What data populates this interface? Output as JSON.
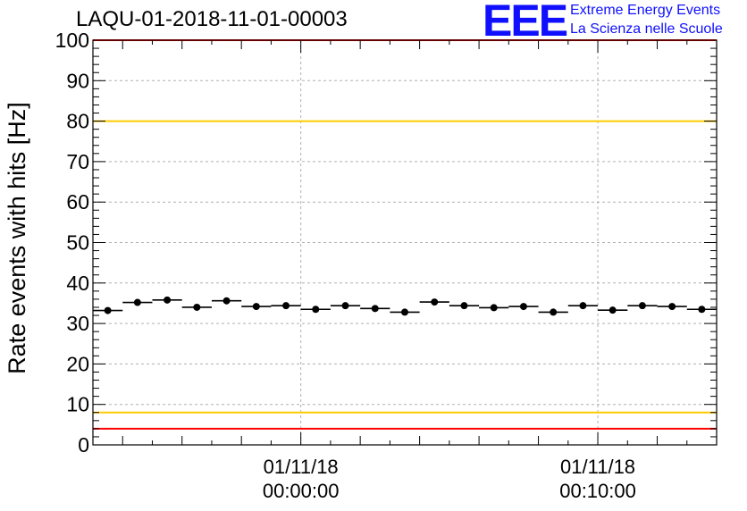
{
  "chart_data": {
    "type": "scatter",
    "title": "LAQU-01-2018-11-01-00003",
    "ylabel": "Rate events with hits [Hz]",
    "xlabel": "",
    "ylim": [
      0,
      100
    ],
    "yticks": [
      0,
      10,
      20,
      30,
      40,
      50,
      60,
      70,
      80,
      90,
      100
    ],
    "x_axis_unit": "minutes",
    "xlim": [
      -7,
      14
    ],
    "xticks": [
      {
        "x": 0,
        "line1": "01/11/18",
        "line2": "00:00:00"
      },
      {
        "x": 10,
        "line1": "01/11/18",
        "line2": "00:10:00"
      }
    ],
    "grid": true,
    "bin_width": 1,
    "x": [
      -6.5,
      -5.5,
      -4.5,
      -3.5,
      -2.5,
      -1.5,
      -0.5,
      0.5,
      1.5,
      2.5,
      3.5,
      4.5,
      5.5,
      6.5,
      7.5,
      8.5,
      9.5,
      10.5,
      11.5,
      12.5,
      13.5
    ],
    "values": [
      33.2,
      35.2,
      35.8,
      34.0,
      35.6,
      34.2,
      34.4,
      33.5,
      34.4,
      33.7,
      32.8,
      35.3,
      34.4,
      33.9,
      34.2,
      32.8,
      34.4,
      33.3,
      34.4,
      34.2,
      33.5
    ],
    "reference_lines": [
      {
        "y": 100,
        "color": "#ff0000"
      },
      {
        "y": 80,
        "color": "#ffcc00"
      },
      {
        "y": 8,
        "color": "#ffcc00"
      },
      {
        "y": 4,
        "color": "#ff0000"
      }
    ],
    "marker_color": "#000000"
  },
  "logo": {
    "mark": "EEE",
    "line1": "Extreme Energy Events",
    "line2": "La Scienza nelle Scuole",
    "color": "#1010ff"
  }
}
